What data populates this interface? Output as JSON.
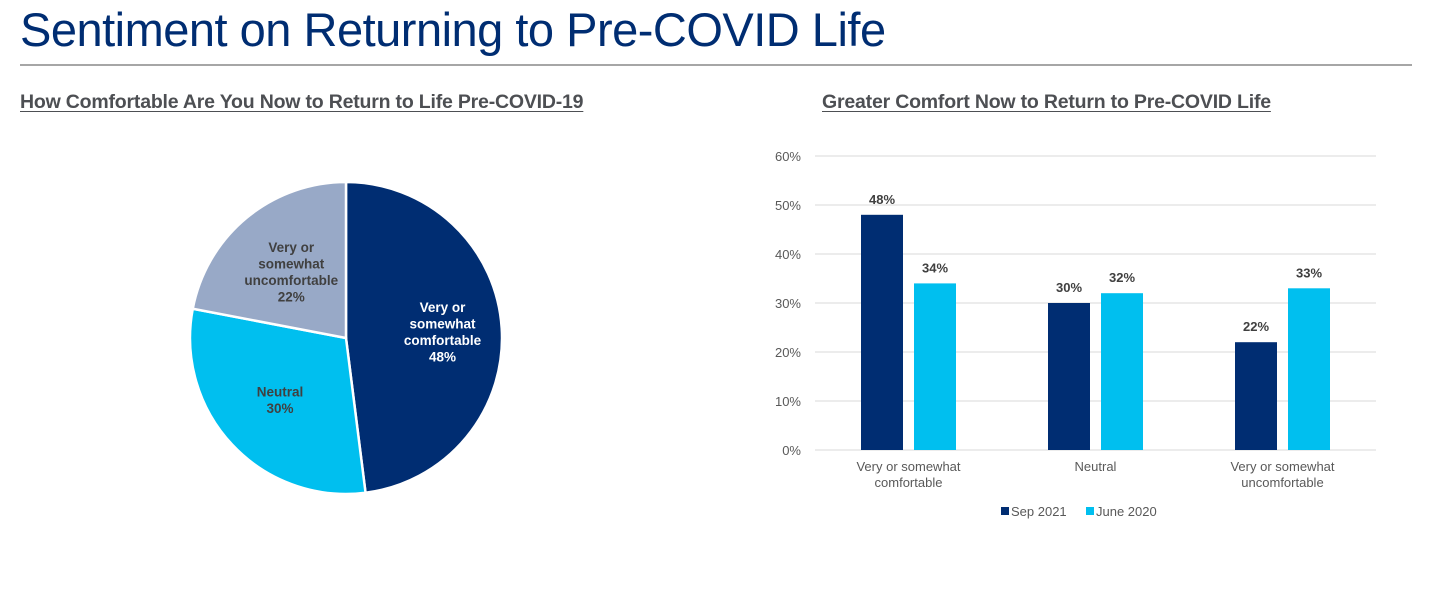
{
  "page": {
    "title": "Sentiment on Returning to Pre-COVID Life"
  },
  "colors": {
    "navy": "#002d72",
    "cyan": "#00bfef",
    "gray_blue": "#98a9c7",
    "title": "#002d72",
    "subtitle": "#4d4f53",
    "grid": "#d9d9d9",
    "axis_text": "#595959",
    "label_dark": "#404040"
  },
  "chart_data": [
    {
      "type": "pie",
      "title": "How Comfortable Are You Now to Return to Life Pre-COVID-19",
      "slices": [
        {
          "label_lines": [
            "Very or",
            "somewhat",
            "comfortable",
            "48%"
          ],
          "label": "Very or somewhat comfortable",
          "value": 48,
          "color": "#002d72",
          "text_color": "#ffffff"
        },
        {
          "label_lines": [
            "Neutral",
            "30%"
          ],
          "label": "Neutral",
          "value": 30,
          "color": "#00bfef",
          "text_color": "#404040"
        },
        {
          "label_lines": [
            "Very or",
            "somewhat",
            "uncomfortable",
            "22%"
          ],
          "label": "Very or somewhat uncomfortable",
          "value": 22,
          "color": "#98a9c7",
          "text_color": "#404040"
        }
      ],
      "start_angle": "12 o'clock",
      "direction": "clockwise"
    },
    {
      "type": "bar",
      "title": "Greater Comfort Now to Return to Pre-COVID Life",
      "categories": [
        [
          "Very or somewhat",
          "comfortable"
        ],
        [
          "Neutral"
        ],
        [
          "Very or somewhat",
          "uncomfortable"
        ]
      ],
      "series": [
        {
          "name": "Sep 2021",
          "values": [
            48,
            30,
            22
          ],
          "color": "#002d72",
          "labels": [
            "48%",
            "30%",
            "22%"
          ]
        },
        {
          "name": "June 2020",
          "values": [
            34,
            32,
            33
          ],
          "color": "#00bfef",
          "labels": [
            "34%",
            "32%",
            "33%"
          ]
        }
      ],
      "ylim": [
        0,
        60
      ],
      "yticks": [
        0,
        10,
        20,
        30,
        40,
        50,
        60
      ],
      "ytick_labels": [
        "0%",
        "10%",
        "20%",
        "30%",
        "40%",
        "50%",
        "60%"
      ],
      "xlabel": "",
      "ylabel": "",
      "grid": true,
      "legend": "bottom-center"
    }
  ]
}
